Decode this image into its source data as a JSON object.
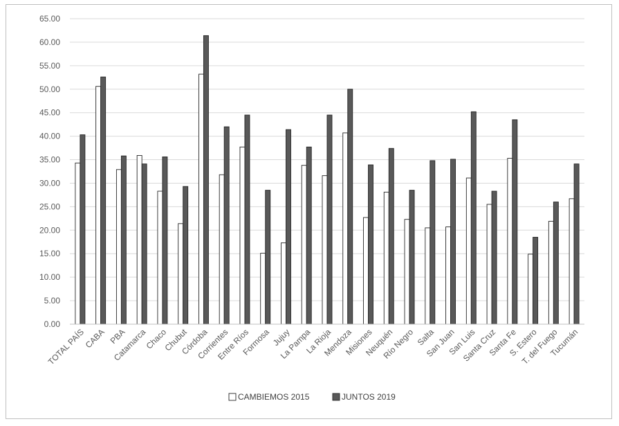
{
  "chart_data": {
    "type": "bar",
    "title": "",
    "xlabel": "",
    "ylabel": "",
    "ylim": [
      0,
      65
    ],
    "yticks": [
      "0.00",
      "5.00",
      "10.00",
      "15.00",
      "20.00",
      "25.00",
      "30.00",
      "35.00",
      "40.00",
      "45.00",
      "50.00",
      "55.00",
      "60.00",
      "65.00"
    ],
    "grid": true,
    "legend_position": "bottom",
    "categories": [
      "TOTAL PAÍS",
      "CABA",
      "PBA",
      "Catamarca",
      "Chaco",
      "Chubut",
      "Córdoba",
      "Corrientes",
      "Entre Ríos",
      "Formosa",
      "Jujuy",
      "La Pampa",
      "La Rioja",
      "Mendoza",
      "Misiones",
      "Neuquén",
      "Río Negro",
      "Salta",
      "San Juan",
      "San Luis",
      "Santa Cruz",
      "Santa Fe",
      "S. Estero",
      "T. del Fuego",
      "Tucumán"
    ],
    "series": [
      {
        "name": "CAMBIEMOS 2015",
        "color": "#ffffff",
        "values": [
          34.3,
          50.6,
          32.9,
          35.9,
          28.3,
          21.4,
          53.2,
          31.8,
          37.7,
          15.1,
          17.3,
          33.8,
          31.6,
          40.7,
          22.7,
          28.1,
          22.3,
          20.5,
          20.7,
          31.1,
          25.5,
          35.3,
          14.9,
          21.9,
          26.7
        ]
      },
      {
        "name": "JUNTOS 2019",
        "color": "#595959",
        "values": [
          40.3,
          52.6,
          35.8,
          34.1,
          35.6,
          29.3,
          61.4,
          42.0,
          44.5,
          28.5,
          41.4,
          37.7,
          44.5,
          50.0,
          33.9,
          37.4,
          28.5,
          34.8,
          35.1,
          45.2,
          28.3,
          43.5,
          18.5,
          26.0,
          34.1
        ]
      }
    ]
  }
}
